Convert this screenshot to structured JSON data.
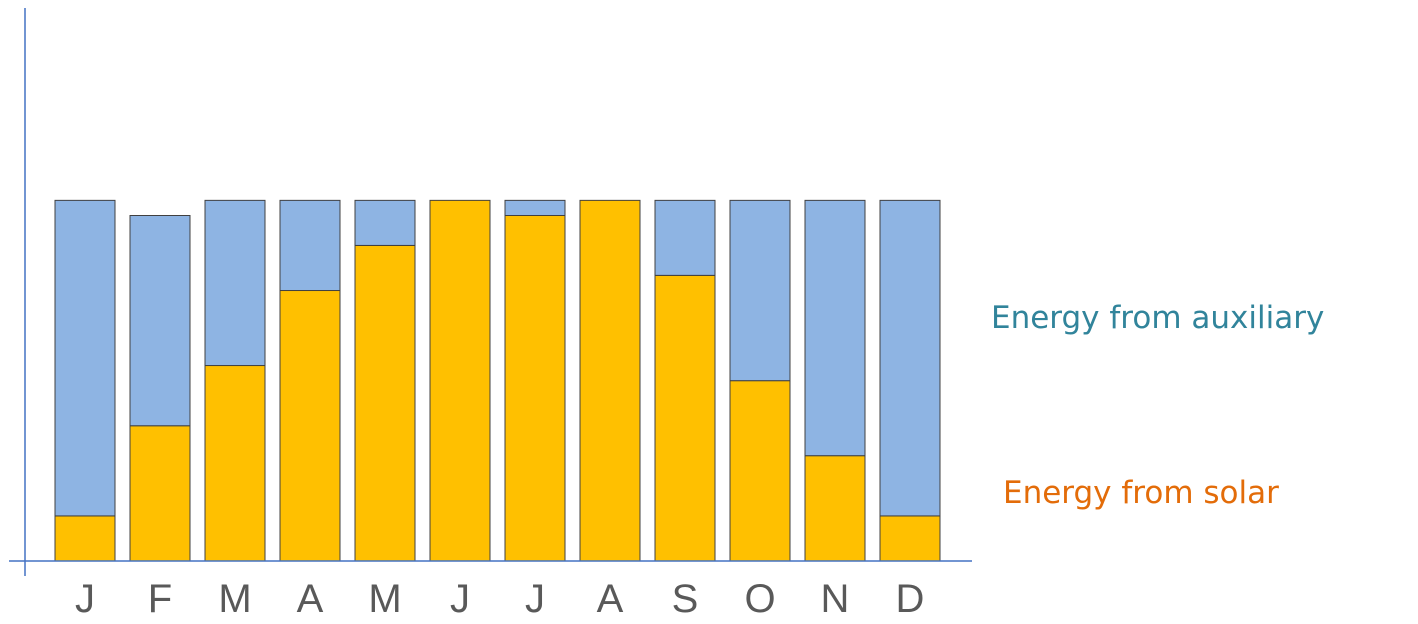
{
  "chart_data": {
    "type": "bar",
    "stacked": true,
    "categories": [
      "J",
      "F",
      "M",
      "A",
      "M",
      "J",
      "J",
      "A",
      "S",
      "O",
      "N",
      "D"
    ],
    "series": [
      {
        "name": "Energy from solar",
        "color": "#FFC000",
        "values": [
          12.5,
          37.5,
          54.2,
          75.0,
          87.5,
          100.0,
          95.8,
          100.0,
          79.2,
          50.0,
          29.2,
          12.5
        ]
      },
      {
        "name": "Energy from auxiliary",
        "color": "#8EB4E3",
        "values": [
          87.5,
          58.3,
          45.8,
          25.0,
          12.5,
          0.0,
          4.2,
          0.0,
          20.8,
          50.0,
          70.8,
          87.5
        ]
      }
    ],
    "ylim": [
      0,
      155
    ],
    "legend": "right"
  },
  "legend": {
    "auxiliary_label": "Energy from auxiliary",
    "auxiliary_color": "#31849B",
    "solar_label": "Energy from solar",
    "solar_color": "#E36C09"
  }
}
